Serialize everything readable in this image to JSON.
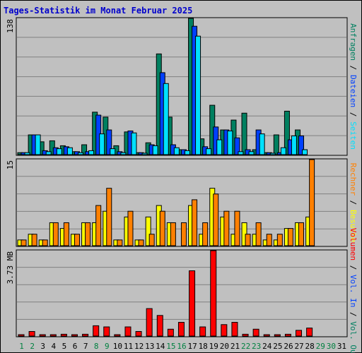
{
  "title": "Tages-Statistik im Monat Februar 2025",
  "colors": {
    "frame_bg": "#c0c0c0",
    "plot_bg": "#c0c0c0",
    "grid": "#808080",
    "hits": "#008060",
    "files": "#0040ff",
    "pages": "#00e0ff",
    "visits": "#ffff00",
    "sites": "#ff8000",
    "volume": "#ff0000",
    "weekend_label": "#008040",
    "weekday_label": "#000000"
  },
  "chart_data": [
    {
      "type": "bar",
      "panel": "top",
      "ytick_top": "138",
      "ymax": 138,
      "categories": [
        "1",
        "2",
        "3",
        "4",
        "5",
        "6",
        "7",
        "8",
        "9",
        "10",
        "11",
        "12",
        "13",
        "14",
        "15",
        "16",
        "17",
        "18",
        "19",
        "20",
        "21",
        "22",
        "23",
        "24",
        "25",
        "26",
        "27",
        "28",
        "29",
        "30",
        "31"
      ],
      "weekend_days": [
        1,
        2,
        8,
        9,
        15,
        16,
        22,
        23,
        29,
        30
      ],
      "right_label_parts": [
        {
          "text": "Anfragen",
          "color": "#008060"
        },
        {
          "text": " / ",
          "color": "#000000"
        },
        {
          "text": "Dateien",
          "color": "#0040ff"
        },
        {
          "text": " / ",
          "color": "#000000"
        },
        {
          "text": "Seiten",
          "color": "#00e0ff"
        }
      ],
      "series": [
        {
          "name": "Anfragen",
          "color": "#008060",
          "values": [
            2,
            20,
            13,
            14,
            9,
            3,
            10,
            43,
            38,
            9,
            23,
            2,
            12,
            102,
            38,
            5,
            138,
            16,
            50,
            25,
            35,
            42,
            5,
            2,
            20,
            44,
            25,
            0,
            0,
            0,
            0
          ]
        },
        {
          "name": "Dateien",
          "color": "#0040ff",
          "values": [
            2,
            20,
            4,
            7,
            8,
            3,
            3,
            40,
            25,
            3,
            24,
            2,
            10,
            83,
            10,
            5,
            130,
            8,
            28,
            25,
            17,
            5,
            25,
            2,
            2,
            15,
            19,
            0,
            0,
            0,
            0
          ]
        },
        {
          "name": "Seiten",
          "color": "#00e0ff",
          "values": [
            2,
            20,
            3,
            6,
            7,
            2,
            4,
            21,
            6,
            2,
            22,
            1,
            9,
            72,
            7,
            4,
            120,
            6,
            15,
            24,
            3,
            3,
            21,
            1,
            7,
            19,
            5,
            0,
            0,
            0,
            0
          ]
        }
      ]
    },
    {
      "type": "bar",
      "panel": "middle",
      "ytick_top": "15",
      "ymax": 15,
      "right_label_parts": [
        {
          "text": "Rechner",
          "color": "#ff8000"
        },
        {
          "text": " / ",
          "color": "#000000"
        },
        {
          "text": "Besuche",
          "color": "#ffff00"
        }
      ],
      "series": [
        {
          "name": "Besuche",
          "color": "#ffff00",
          "values": [
            1,
            2,
            1,
            4,
            3,
            2,
            4,
            4,
            6,
            1,
            5,
            1,
            5,
            7,
            4,
            0,
            7,
            2,
            10,
            5,
            2,
            4,
            2,
            1,
            1,
            3,
            4,
            5,
            0,
            0,
            0
          ]
        },
        {
          "name": "Rechner",
          "color": "#ff8000",
          "values": [
            1,
            2,
            1,
            4,
            4,
            2,
            4,
            7,
            10,
            1,
            6,
            1,
            2,
            6,
            4,
            4,
            8,
            4,
            9,
            6,
            6,
            2,
            4,
            2,
            2,
            3,
            4,
            15,
            0,
            0,
            0
          ]
        }
      ]
    },
    {
      "type": "bar",
      "panel": "bottom",
      "ytick_top": "3.73 MB",
      "ymax": 3.73,
      "right_label_parts": [
        {
          "text": "Volumen",
          "color": "#ff0000"
        },
        {
          "text": " / ",
          "color": "#000000"
        },
        {
          "text": "Vol. In",
          "color": "#0040ff"
        },
        {
          "text": " / ",
          "color": "#000000"
        },
        {
          "text": "Vol. Out",
          "color": "#008060"
        }
      ],
      "series": [
        {
          "name": "Volumen",
          "color": "#ff0000",
          "values": [
            0.03,
            0.2,
            0.05,
            0.05,
            0.08,
            0.05,
            0.08,
            0.45,
            0.4,
            0.05,
            0.4,
            0.2,
            1.2,
            0.9,
            0.3,
            0.6,
            2.85,
            0.4,
            3.73,
            0.5,
            0.6,
            0.08,
            0.3,
            0.05,
            0.05,
            0.08,
            0.25,
            0.35,
            0,
            0,
            0
          ]
        }
      ]
    }
  ]
}
